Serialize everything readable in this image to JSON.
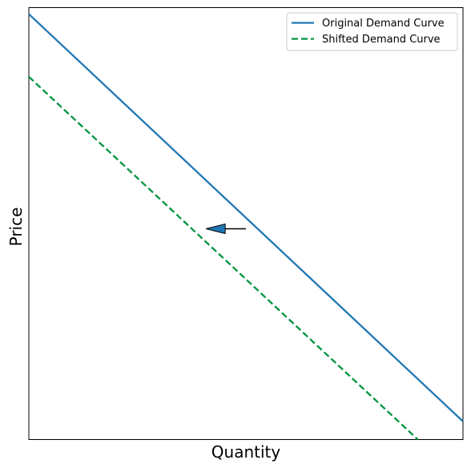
{
  "chart_data": {
    "type": "line",
    "title": "",
    "xlabel": "Quantity",
    "ylabel": "Price",
    "xlim": [
      0,
      10
    ],
    "ylim": [
      0,
      10
    ],
    "grid": false,
    "ticks": false,
    "legend_position": "top-right",
    "series": [
      {
        "name": "Original Demand Curve",
        "style": "solid",
        "color": "#1f77b4",
        "x": [
          0,
          10
        ],
        "y": [
          9.85,
          0.42
        ]
      },
      {
        "name": "Shifted Demand Curve",
        "style": "dashed",
        "color": "#009440",
        "x": [
          0,
          8.96
        ],
        "y": [
          8.4,
          0
        ]
      }
    ],
    "annotations": [
      {
        "type": "arrow",
        "direction": "left",
        "from": [
          5.0,
          4.88
        ],
        "to": [
          4.08,
          4.88
        ],
        "color": "#1f77b4"
      }
    ]
  }
}
